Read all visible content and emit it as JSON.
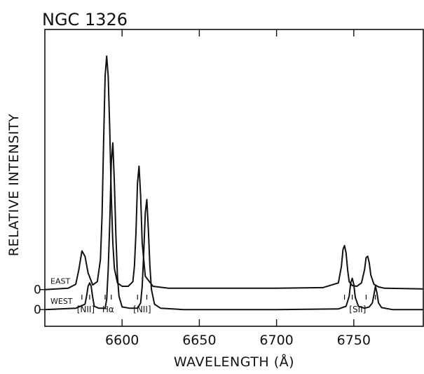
{
  "chart_data": {
    "type": "line",
    "title": "NGC 1326",
    "xlabel": "WAVELENGTH (Å)",
    "ylabel": "RELATIVE INTENSITY",
    "xlim": [
      6550,
      6795
    ],
    "ylim": [
      -0.55,
      3.9
    ],
    "x_ticks": [
      6600,
      6650,
      6700,
      6750
    ],
    "grid": false,
    "legend": "none",
    "zero_label": "0",
    "line_labels": [
      {
        "text": "[NII]",
        "x": 6576.5,
        "markers": [
          6574,
          6579
        ]
      },
      {
        "text": "Hα",
        "x": 6591,
        "markers": [
          6589,
          6593
        ]
      },
      {
        "text": "[NII]",
        "x": 6613,
        "markers": [
          6610,
          6616
        ]
      },
      {
        "text": "[SII]",
        "x": 6752.5,
        "markers": [
          6744,
          6749,
          6758,
          6764
        ]
      }
    ],
    "series": [
      {
        "name": "EAST",
        "baseline": 0.0,
        "x": [
          6550,
          6565,
          6570,
          6572,
          6574,
          6576,
          6578,
          6581,
          6584,
          6586,
          6587,
          6588,
          6589,
          6590,
          6591,
          6592,
          6593,
          6594,
          6595,
          6597,
          6600,
          6604,
          6607,
          6608,
          6609,
          6610,
          6611,
          6612,
          6613,
          6615,
          6620,
          6630,
          6700,
          6730,
          6740,
          6742,
          6743,
          6744,
          6745,
          6746,
          6747,
          6749,
          6752,
          6755,
          6757,
          6758,
          6759,
          6760,
          6761,
          6763,
          6766,
          6770,
          6795
        ],
        "y": [
          0.0,
          0.02,
          0.08,
          0.3,
          0.58,
          0.5,
          0.25,
          0.07,
          0.12,
          0.45,
          1.1,
          2.2,
          3.2,
          3.5,
          3.2,
          2.4,
          1.4,
          0.7,
          0.32,
          0.1,
          0.05,
          0.05,
          0.12,
          0.35,
          0.85,
          1.6,
          1.85,
          1.4,
          0.7,
          0.2,
          0.05,
          0.02,
          0.02,
          0.03,
          0.1,
          0.35,
          0.6,
          0.66,
          0.55,
          0.3,
          0.12,
          0.06,
          0.05,
          0.1,
          0.3,
          0.48,
          0.5,
          0.4,
          0.22,
          0.08,
          0.04,
          0.02,
          0.01
        ]
      },
      {
        "name": "WEST",
        "baseline": -0.3,
        "x": [
          6550,
          6570,
          6576,
          6577,
          6578,
          6579,
          6580,
          6581,
          6582,
          6585,
          6589,
          6590,
          6591,
          6592,
          6593,
          6594,
          6595,
          6596,
          6597,
          6598,
          6600,
          6605,
          6610,
          6612,
          6613,
          6614,
          6615,
          6616,
          6617,
          6618,
          6619,
          6621,
          6625,
          6640,
          6700,
          6740,
          6745,
          6747,
          6748,
          6749,
          6750,
          6751,
          6753,
          6757,
          6760,
          6762,
          6763,
          6764,
          6765,
          6766,
          6768,
          6775,
          6795
        ],
        "y": [
          -0.3,
          -0.28,
          -0.22,
          -0.1,
          0.05,
          0.1,
          0.05,
          -0.12,
          -0.25,
          -0.28,
          -0.28,
          -0.15,
          0.3,
          1.0,
          1.9,
          2.2,
          1.6,
          0.8,
          0.2,
          -0.1,
          -0.26,
          -0.28,
          -0.28,
          -0.2,
          0.05,
          0.55,
          1.15,
          1.35,
          0.9,
          0.35,
          0.0,
          -0.22,
          -0.28,
          -0.3,
          -0.3,
          -0.29,
          -0.25,
          -0.1,
          0.1,
          0.17,
          0.08,
          -0.12,
          -0.25,
          -0.28,
          -0.26,
          -0.2,
          -0.08,
          0.05,
          -0.05,
          -0.2,
          -0.27,
          -0.3,
          -0.3
        ]
      }
    ]
  }
}
